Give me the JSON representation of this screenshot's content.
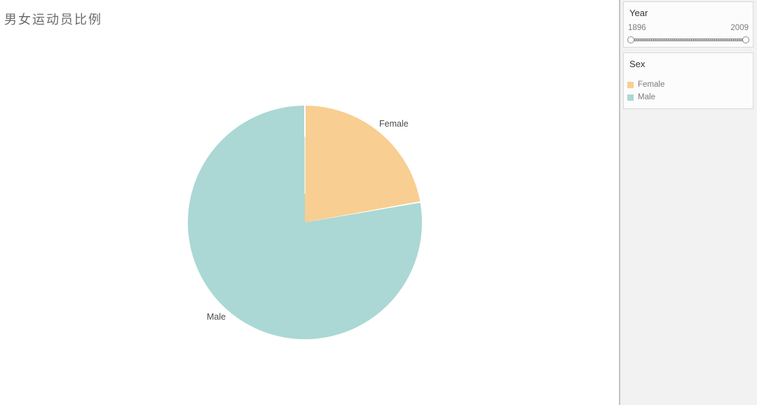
{
  "page": {
    "title": "男女运动员比例"
  },
  "chart_data": {
    "type": "pie",
    "title": "男女运动员比例",
    "units": "percent",
    "start_angle_deg": 0,
    "direction": "clockwise",
    "slices": [
      {
        "label": "Female",
        "value": 22.2,
        "color": "#F8CE92"
      },
      {
        "label": "Male",
        "value": 77.8,
        "color": "#ABD8D4"
      }
    ],
    "legend_position": "right"
  },
  "filters": {
    "year": {
      "title": "Year",
      "min": "1896",
      "max": "2009"
    }
  },
  "legend": {
    "title": "Sex",
    "items": [
      {
        "label": "Female",
        "color": "#F8CE92"
      },
      {
        "label": "Male",
        "color": "#ABD8D4"
      }
    ]
  },
  "colors": {
    "female": "#F8CE92",
    "male": "#ABD8D4",
    "sidebar_bg": "#f2f2f2",
    "card_bg": "#fcfcfc",
    "card_border": "#d9d9d9"
  }
}
